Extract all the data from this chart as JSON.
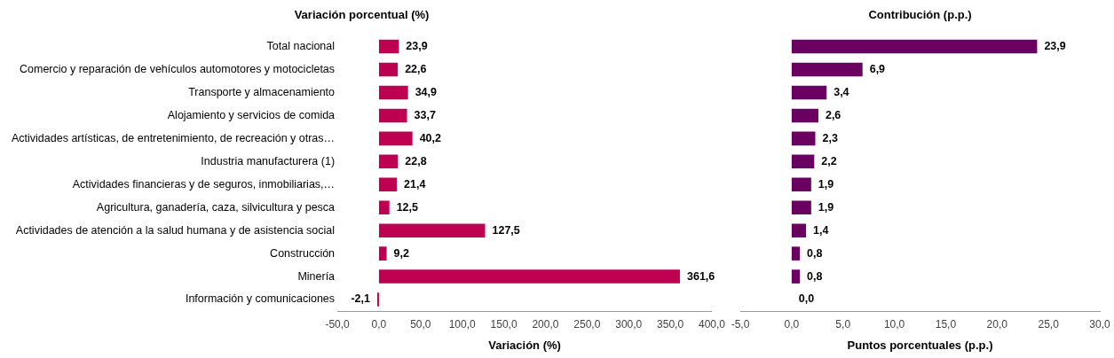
{
  "chart_data": [
    {
      "type": "bar",
      "orientation": "horizontal",
      "title": "Variación porcentual (%)",
      "xlabel": "Variación (%)",
      "categories": [
        "Total nacional",
        "Comercio y reparación de vehículos automotores y motocicletas",
        "Transporte y almacenamiento",
        "Alojamiento y servicios de comida",
        "Actividades artísticas, de entretenimiento, de recreación y otras…",
        "Industria manufacturera (1)",
        "Actividades financieras y de seguros, inmobiliarias,…",
        "Agricultura, ganadería, caza, silvicultura y pesca",
        "Actividades de atención a la salud humana y de asistencia social",
        "Construcción",
        "Minería",
        "Información y comunicaciones"
      ],
      "values": [
        23.9,
        22.6,
        34.9,
        33.7,
        40.2,
        22.8,
        21.4,
        12.5,
        127.5,
        9.2,
        361.6,
        -2.1
      ],
      "value_labels": [
        "23,9",
        "22,6",
        "34,9",
        "33,7",
        "40,2",
        "22,8",
        "21,4",
        "12,5",
        "127,5",
        "9,2",
        "361,6",
        "-2,1"
      ],
      "color": "#be0050",
      "xlim": [
        -50,
        400
      ],
      "xticks": [
        {
          "value": -50,
          "label": "-50,0"
        },
        {
          "value": 0,
          "label": "0,0"
        },
        {
          "value": 50,
          "label": "50,0"
        },
        {
          "value": 100,
          "label": "100,0"
        },
        {
          "value": 150,
          "label": "150,0"
        },
        {
          "value": 200,
          "label": "200,0"
        },
        {
          "value": 250,
          "label": "250,0"
        },
        {
          "value": 300,
          "label": "300,0"
        },
        {
          "value": 350,
          "label": "350,0"
        },
        {
          "value": 400,
          "label": "400,0"
        }
      ],
      "grid": false,
      "legend": false
    },
    {
      "type": "bar",
      "orientation": "horizontal",
      "title": "Contribución (p.p.)",
      "xlabel": "Puntos porcentuales (p.p.)",
      "categories": [
        null,
        null,
        null,
        null,
        null,
        null,
        null,
        null,
        null,
        null,
        null,
        null
      ],
      "values": [
        23.9,
        6.9,
        3.4,
        2.6,
        2.3,
        2.2,
        1.9,
        1.9,
        1.4,
        0.8,
        0.8,
        0.0
      ],
      "value_labels": [
        "23,9",
        "6,9",
        "3,4",
        "2,6",
        "2,3",
        "2,2",
        "1,9",
        "1,9",
        "1,4",
        "0,8",
        "0,8",
        "0,0"
      ],
      "color": "#6a005f",
      "xlim": [
        -5,
        30
      ],
      "xticks": [
        {
          "value": -5,
          "label": "-5,0"
        },
        {
          "value": 0,
          "label": "0,0"
        },
        {
          "value": 5,
          "label": "5,0"
        },
        {
          "value": 10,
          "label": "10,0"
        },
        {
          "value": 15,
          "label": "15,0"
        },
        {
          "value": 20,
          "label": "20,0"
        },
        {
          "value": 25,
          "label": "25,0"
        },
        {
          "value": 30,
          "label": "30,0"
        }
      ],
      "grid": false,
      "legend": false,
      "tick_labels": "x"
    }
  ]
}
